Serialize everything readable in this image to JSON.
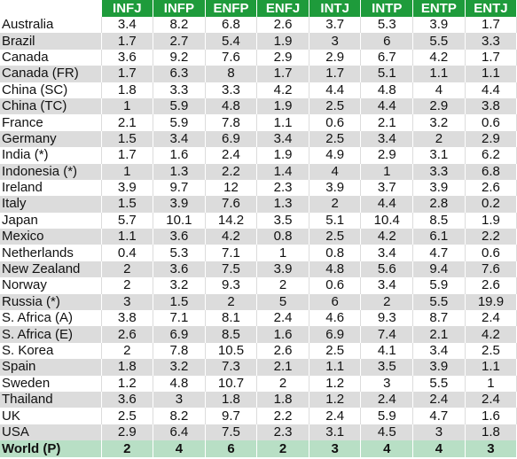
{
  "header": {
    "columns": [
      "INFJ",
      "INFP",
      "ENFP",
      "ENFJ",
      "INTJ",
      "INTP",
      "ENTP",
      "ENTJ"
    ]
  },
  "rows": [
    {
      "country": "Australia",
      "values": [
        "3.4",
        "8.2",
        "6.8",
        "2.6",
        "3.7",
        "5.3",
        "3.9",
        "1.7"
      ]
    },
    {
      "country": "Brazil",
      "values": [
        "1.7",
        "2.7",
        "5.4",
        "1.9",
        "3",
        "6",
        "5.5",
        "3.3"
      ]
    },
    {
      "country": "Canada",
      "values": [
        "3.6",
        "9.2",
        "7.6",
        "2.9",
        "2.9",
        "6.7",
        "4.2",
        "1.7"
      ]
    },
    {
      "country": "Canada (FR)",
      "values": [
        "1.7",
        "6.3",
        "8",
        "1.7",
        "1.7",
        "5.1",
        "1.1",
        "1.1"
      ]
    },
    {
      "country": "China (SC)",
      "values": [
        "1.8",
        "3.3",
        "3.3",
        "4.2",
        "4.4",
        "4.8",
        "4",
        "4.4"
      ]
    },
    {
      "country": "China (TC)",
      "values": [
        "1",
        "5.9",
        "4.8",
        "1.9",
        "2.5",
        "4.4",
        "2.9",
        "3.8"
      ]
    },
    {
      "country": "France",
      "values": [
        "2.1",
        "5.9",
        "7.8",
        "1.1",
        "0.6",
        "2.1",
        "3.2",
        "0.6"
      ]
    },
    {
      "country": "Germany",
      "values": [
        "1.5",
        "3.4",
        "6.9",
        "3.4",
        "2.5",
        "3.4",
        "2",
        "2.9"
      ]
    },
    {
      "country": "India (*)",
      "values": [
        "1.7",
        "1.6",
        "2.4",
        "1.9",
        "4.9",
        "2.9",
        "3.1",
        "6.2"
      ]
    },
    {
      "country": "Indonesia (*)",
      "values": [
        "1",
        "1.3",
        "2.2",
        "1.4",
        "4",
        "1",
        "3.3",
        "6.8"
      ]
    },
    {
      "country": "Ireland",
      "values": [
        "3.9",
        "9.7",
        "12",
        "2.3",
        "3.9",
        "3.7",
        "3.9",
        "2.6"
      ]
    },
    {
      "country": "Italy",
      "values": [
        "1.5",
        "3.9",
        "7.6",
        "1.3",
        "2",
        "4.4",
        "2.8",
        "0.2"
      ]
    },
    {
      "country": "Japan",
      "values": [
        "5.7",
        "10.1",
        "14.2",
        "3.5",
        "5.1",
        "10.4",
        "8.5",
        "1.9"
      ]
    },
    {
      "country": "Mexico",
      "values": [
        "1.1",
        "3.6",
        "4.2",
        "0.8",
        "2.5",
        "4.2",
        "6.1",
        "2.2"
      ]
    },
    {
      "country": "Netherlands",
      "values": [
        "0.4",
        "5.3",
        "7.1",
        "1",
        "0.8",
        "3.4",
        "4.7",
        "0.6"
      ]
    },
    {
      "country": "New Zealand",
      "values": [
        "2",
        "3.6",
        "7.5",
        "3.9",
        "4.8",
        "5.6",
        "9.4",
        "7.6"
      ]
    },
    {
      "country": "Norway",
      "values": [
        "2",
        "3.2",
        "9.3",
        "2",
        "0.6",
        "3.4",
        "5.9",
        "2.6"
      ]
    },
    {
      "country": "Russia (*)",
      "values": [
        "3",
        "1.5",
        "2",
        "5",
        "6",
        "2",
        "5.5",
        "19.9"
      ]
    },
    {
      "country": "S. Africa (A)",
      "values": [
        "3.8",
        "7.1",
        "8.1",
        "2.4",
        "4.6",
        "9.3",
        "8.7",
        "2.4"
      ]
    },
    {
      "country": "S. Africa (E)",
      "values": [
        "2.6",
        "6.9",
        "8.5",
        "1.6",
        "6.9",
        "7.4",
        "2.1",
        "4.2"
      ]
    },
    {
      "country": "S. Korea",
      "values": [
        "2",
        "7.8",
        "10.5",
        "2.6",
        "2.5",
        "4.1",
        "3.4",
        "2.5"
      ]
    },
    {
      "country": "Spain",
      "values": [
        "1.8",
        "3.2",
        "7.3",
        "2.1",
        "1.1",
        "3.5",
        "3.9",
        "1.1"
      ]
    },
    {
      "country": "Sweden",
      "values": [
        "1.2",
        "4.8",
        "10.7",
        "2",
        "1.2",
        "3",
        "5.5",
        "1"
      ]
    },
    {
      "country": "Thailand",
      "values": [
        "3.6",
        "3",
        "1.8",
        "1.8",
        "1.2",
        "2.4",
        "2.4",
        "2.4"
      ]
    },
    {
      "country": "UK",
      "values": [
        "2.5",
        "8.2",
        "9.7",
        "2.2",
        "2.4",
        "5.9",
        "4.7",
        "1.6"
      ]
    },
    {
      "country": "USA",
      "values": [
        "2.9",
        "6.4",
        "7.5",
        "2.3",
        "3.1",
        "4.5",
        "3",
        "1.8"
      ]
    }
  ],
  "footer": {
    "label": "World (P)",
    "values": [
      "2",
      "4",
      "6",
      "2",
      "3",
      "4",
      "4",
      "3"
    ]
  }
}
